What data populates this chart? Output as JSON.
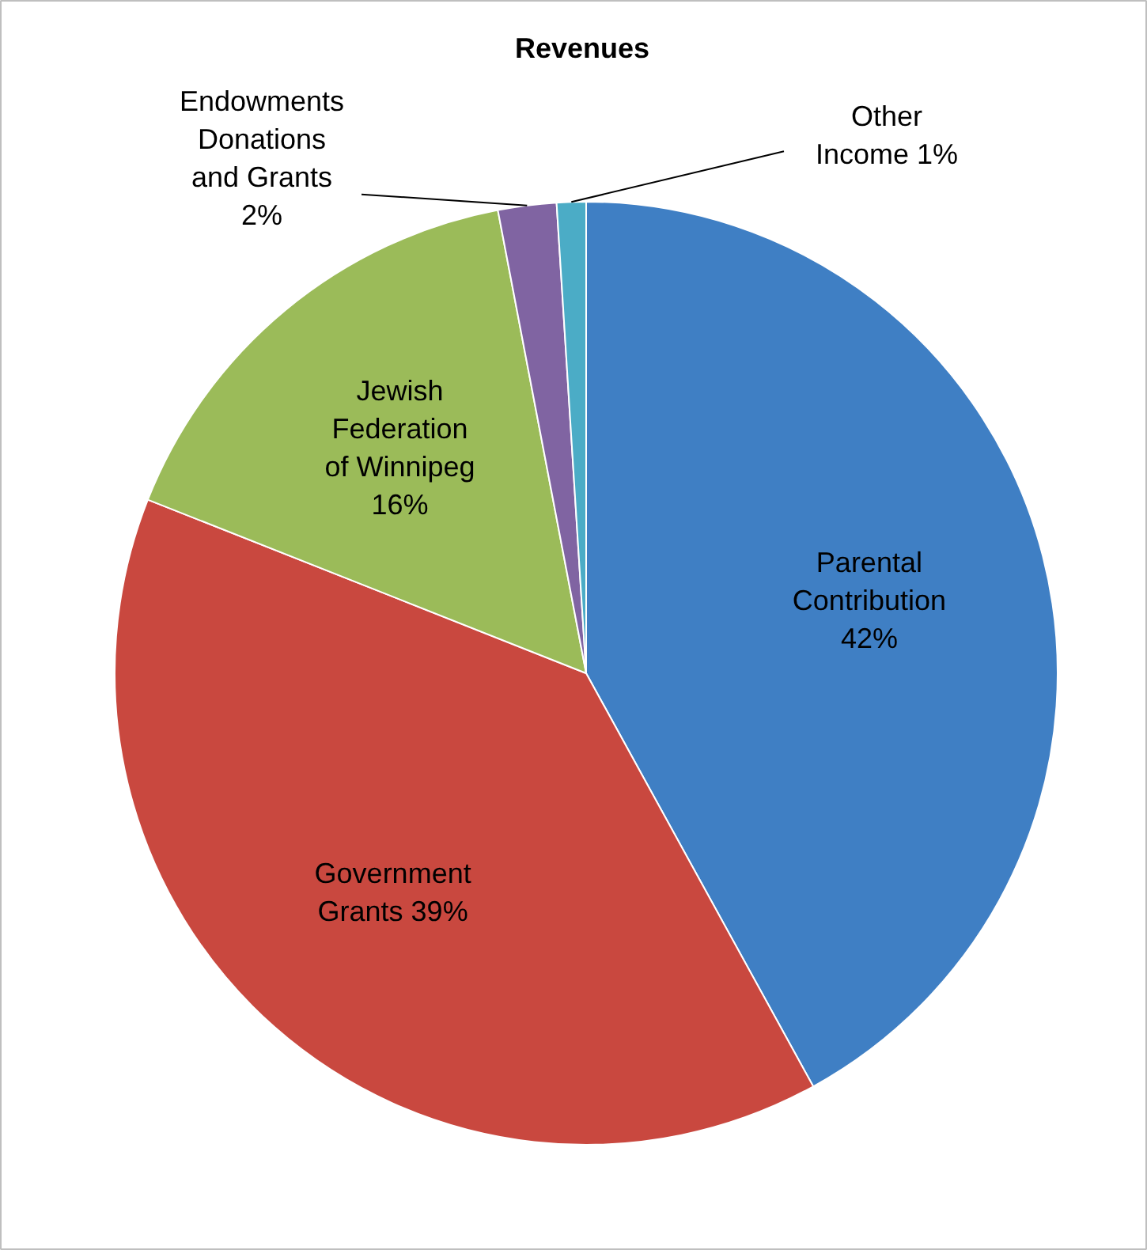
{
  "chart_data": {
    "type": "pie",
    "title": "Revenues",
    "categories": [
      "Parental Contribution",
      "Government Grants",
      "Jewish Federation of Winnipeg",
      "Endowments Donations and Grants",
      "Other Income"
    ],
    "values": [
      42,
      39,
      16,
      2,
      1
    ],
    "colors": [
      "#3f7fc4",
      "#c9483f",
      "#9bbb59",
      "#8064a2",
      "#4bacc6"
    ],
    "value_labels": [
      "42%",
      "39%",
      "16%",
      "2%",
      "1%"
    ]
  }
}
